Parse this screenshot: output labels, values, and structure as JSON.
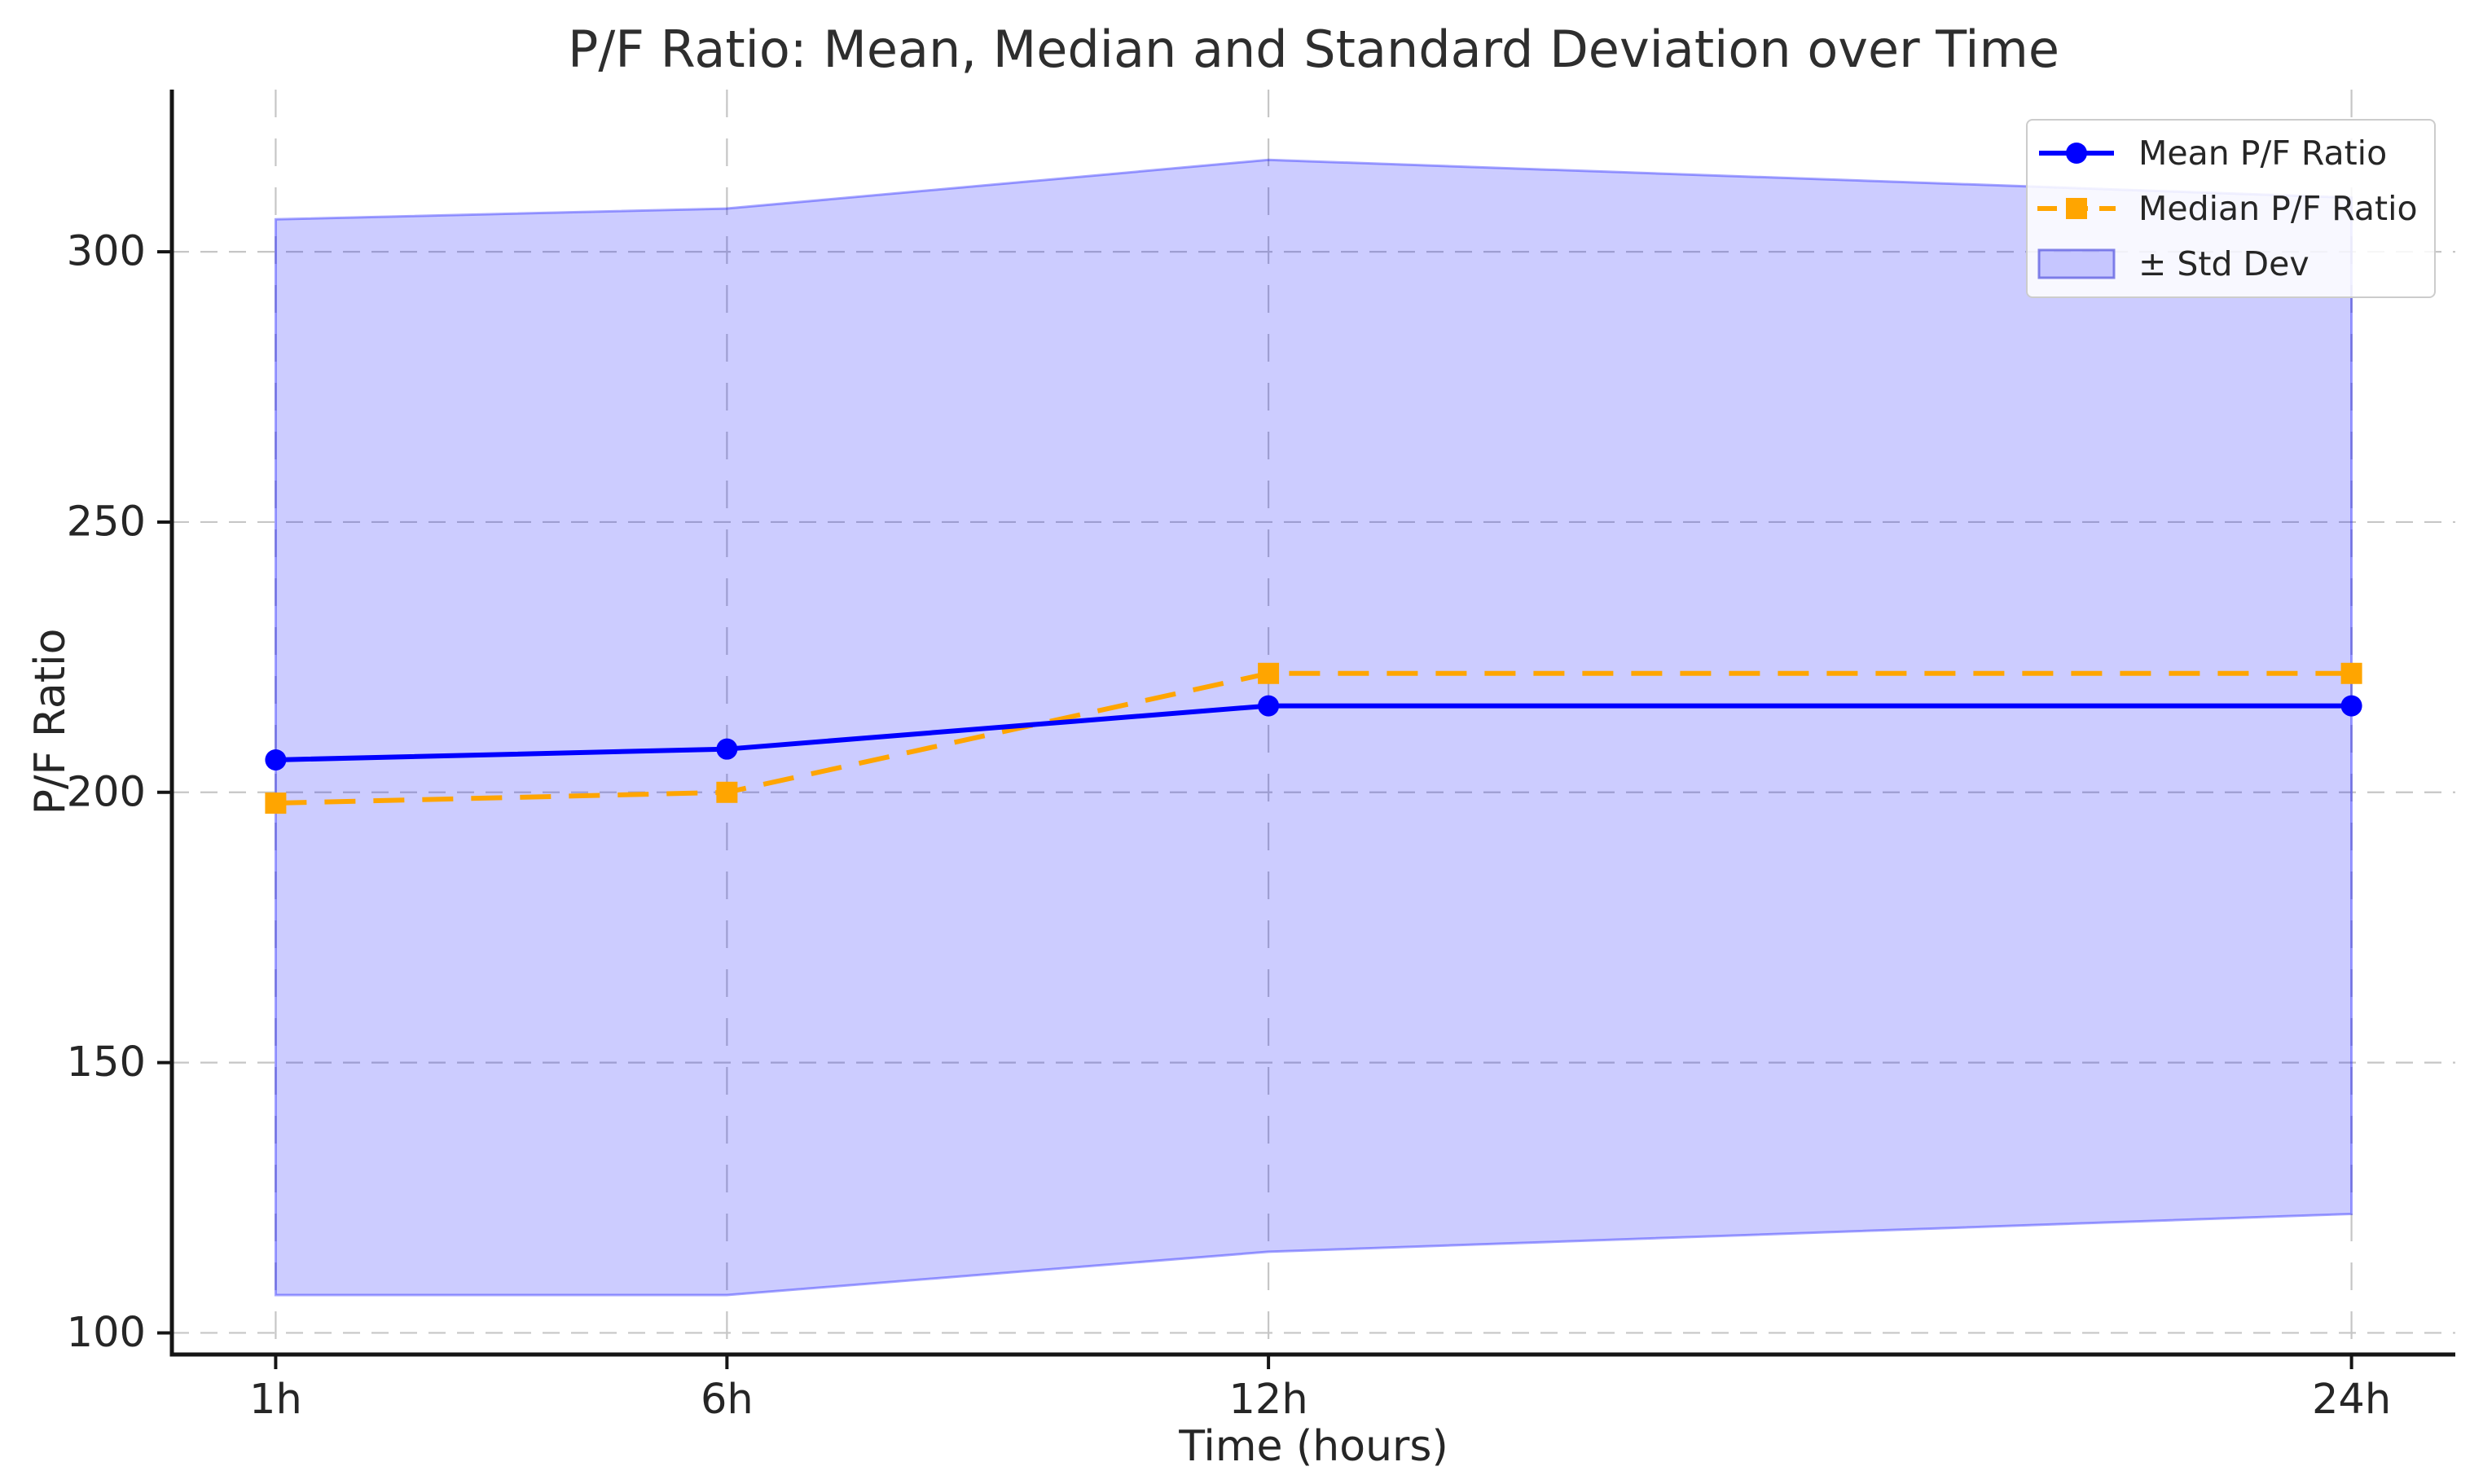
{
  "chart_data": {
    "type": "line",
    "title": "P/F Ratio: Mean, Median and Standard Deviation over Time",
    "xlabel": "Time (hours)",
    "ylabel": "P/F Ratio",
    "x_hours": [
      1,
      6,
      12,
      24
    ],
    "x_tick_labels": [
      "1h",
      "6h",
      "12h",
      "24h"
    ],
    "y_ticks": [
      100,
      150,
      200,
      250,
      300
    ],
    "xlim": [
      -0.15,
      25.15
    ],
    "ylim": [
      96,
      330
    ],
    "grid": true,
    "grid_color": "#c6c6c6",
    "legend_position": "upper right",
    "series": [
      {
        "name": "Mean P/F Ratio",
        "type": "line",
        "color": "#0000ff",
        "linestyle": "solid",
        "marker": "circle",
        "values": [
          206,
          208,
          216,
          216
        ]
      },
      {
        "name": "Median P/F Ratio",
        "type": "line",
        "color": "#ffa500",
        "linestyle": "dashed",
        "marker": "square",
        "values": [
          198,
          200,
          222,
          222
        ]
      },
      {
        "name": "± Std Dev",
        "type": "band",
        "color": "#0000ff",
        "opacity": 0.2,
        "upper": [
          306,
          308,
          317,
          310
        ],
        "lower": [
          107,
          107,
          115,
          122
        ],
        "std_dev_approx": [
          100,
          100,
          101,
          94
        ]
      }
    ]
  }
}
